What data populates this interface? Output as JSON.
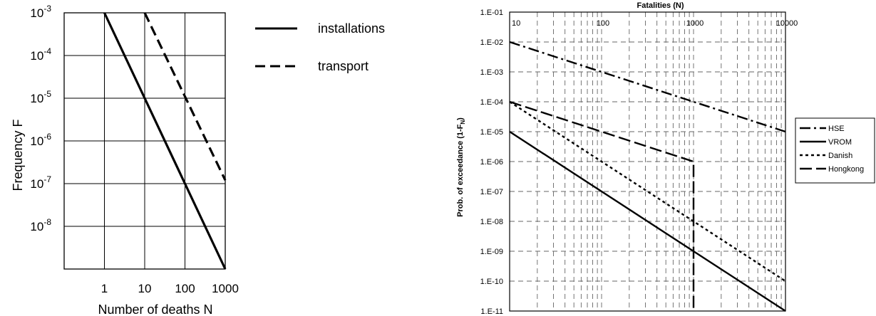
{
  "chart_data": [
    {
      "type": "line",
      "x_scale": "log",
      "y_scale": "log",
      "xlabel": "Number of deaths N",
      "ylabel": "Frequency F",
      "xlim": [
        0.1,
        1000
      ],
      "ylim": [
        1e-09,
        0.001
      ],
      "x_ticks": [
        {
          "value": 1,
          "label": "1"
        },
        {
          "value": 10,
          "label": "10"
        },
        {
          "value": 100,
          "label": "100"
        },
        {
          "value": 1000,
          "label": "1000"
        }
      ],
      "y_ticks": [
        {
          "value": 0.001,
          "mant": "10",
          "exp": "-3"
        },
        {
          "value": 0.0001,
          "mant": "10",
          "exp": "-4"
        },
        {
          "value": 1e-05,
          "mant": "10",
          "exp": "-5"
        },
        {
          "value": 1e-06,
          "mant": "10",
          "exp": "-6"
        },
        {
          "value": 1e-07,
          "mant": "10",
          "exp": "-7"
        },
        {
          "value": 1e-08,
          "mant": "10",
          "exp": "-8"
        }
      ],
      "grid": true,
      "legend_position": "right",
      "series": [
        {
          "name": "installations",
          "style": "solid",
          "x": [
            1,
            1000
          ],
          "y": [
            0.001,
            1e-09
          ]
        },
        {
          "name": "transport",
          "style": "dashed",
          "x": [
            10,
            1000
          ],
          "y": [
            0.001,
            1.2e-07
          ]
        }
      ]
    },
    {
      "type": "line",
      "x_scale": "log",
      "y_scale": "log",
      "xlabel": "Fatalities (N)",
      "ylabel": "Prob. of exceedance (1-F",
      "ylabel_sub": "N",
      "ylabel_close": ")",
      "xlim": [
        10,
        10000
      ],
      "ylim": [
        1e-11,
        0.1
      ],
      "x_ticks": [
        {
          "value": 10,
          "label": "10"
        },
        {
          "value": 100,
          "label": "100"
        },
        {
          "value": 1000,
          "label": "1000"
        },
        {
          "value": 10000,
          "label": "10000"
        }
      ],
      "y_ticks": [
        {
          "value": 0.1,
          "label": "1.E-01"
        },
        {
          "value": 0.01,
          "label": "1.E-02"
        },
        {
          "value": 0.001,
          "label": "1.E-03"
        },
        {
          "value": 0.0001,
          "label": "1.E-04"
        },
        {
          "value": 1e-05,
          "label": "1.E-05"
        },
        {
          "value": 1e-06,
          "label": "1.E-06"
        },
        {
          "value": 1e-07,
          "label": "1.E-07"
        },
        {
          "value": 1e-08,
          "label": "1.E-08"
        },
        {
          "value": 1e-09,
          "label": "1.E-09"
        },
        {
          "value": 1e-10,
          "label": "1.E-10"
        },
        {
          "value": 1e-11,
          "label": "1.E-11"
        }
      ],
      "grid": true,
      "legend_position": "right",
      "series": [
        {
          "name": "HSE",
          "style": "dashdot",
          "x": [
            10,
            10000
          ],
          "y": [
            0.01,
            1e-05
          ]
        },
        {
          "name": "VROM",
          "style": "solid",
          "x": [
            10,
            10000
          ],
          "y": [
            1e-05,
            1e-11
          ]
        },
        {
          "name": "Danish",
          "style": "dotted",
          "x": [
            10,
            10000
          ],
          "y": [
            0.0001,
            1e-10
          ]
        },
        {
          "name": "Hongkong",
          "style": "longdash",
          "x": [
            10,
            1000,
            1000
          ],
          "y": [
            0.0001,
            1e-06,
            1e-11
          ]
        }
      ]
    }
  ]
}
